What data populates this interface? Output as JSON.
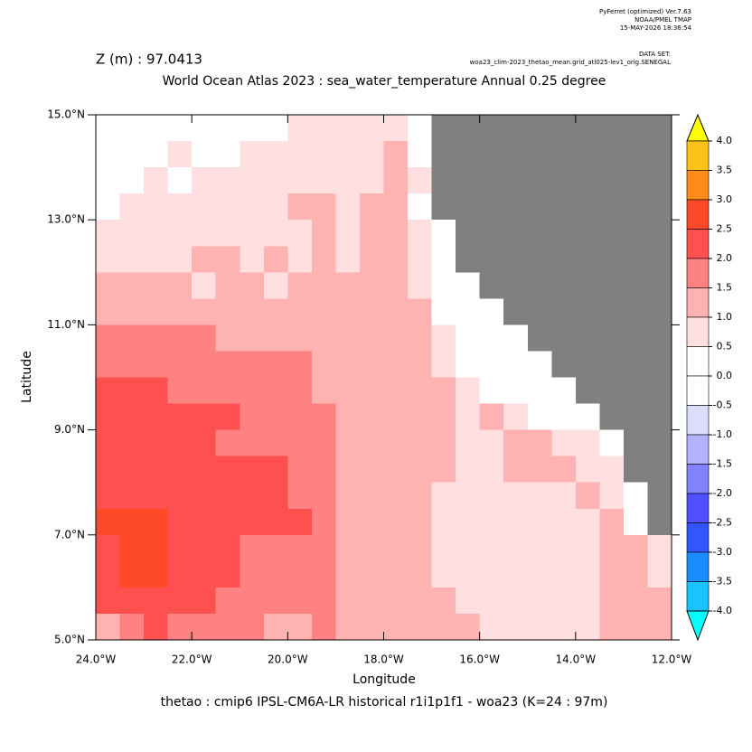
{
  "header": {
    "software": "PyFerret (optimized) Ver.7.63",
    "org": "NOAA/PMEL TMAP",
    "date": "15-MAY-2026 18:36:54",
    "dataset_label": "DATA SET:",
    "dataset": "woa23_clim-2023_thetao_mean.grid_atl025-lev1_orig.SENEGAL",
    "depth": "Z (m) : 97.0413"
  },
  "footer": "thetao : cmip6 IPSL-CM6A-LR historical r1i1p1f1 - woa23  (K=24 : 97m)",
  "chart_data": {
    "type": "heatmap",
    "title": "World Ocean Atlas 2023 : sea_water_temperature Annual  0.25 degree",
    "x_label": "Longitude",
    "y_label": "Latitude",
    "xlim": [
      -24,
      -12
    ],
    "ylim": [
      5,
      15
    ],
    "xticks": [
      {
        "value": -24,
        "label": "24.0°W"
      },
      {
        "value": -22,
        "label": "22.0°W"
      },
      {
        "value": -20,
        "label": "20.0°W"
      },
      {
        "value": -18,
        "label": "18.0°W"
      },
      {
        "value": -16,
        "label": "16.0°W"
      },
      {
        "value": -14,
        "label": "14.0°W"
      },
      {
        "value": -12,
        "label": "12.0°W"
      }
    ],
    "yticks": [
      {
        "value": 5,
        "label": "5.0°N"
      },
      {
        "value": 7,
        "label": "7.0°N"
      },
      {
        "value": 9,
        "label": "9.0°N"
      },
      {
        "value": 11,
        "label": "11.0°N"
      },
      {
        "value": 13,
        "label": "13.0°N"
      },
      {
        "value": 15,
        "label": "15.0°N"
      }
    ],
    "land_color": "#808080",
    "z": [
      [
        0.3,
        0.3,
        0.3,
        0.3,
        0.3,
        0.3,
        0.3,
        0.3,
        0.8,
        0.8,
        0.8,
        0.8,
        0.8,
        0.3,
        null,
        null,
        null,
        null,
        null,
        null,
        null,
        null,
        null,
        null
      ],
      [
        0.3,
        0.3,
        0.3,
        0.8,
        0.3,
        0.3,
        0.8,
        0.8,
        0.8,
        0.8,
        0.8,
        0.8,
        1.3,
        0.3,
        null,
        null,
        null,
        null,
        null,
        null,
        null,
        null,
        null,
        null
      ],
      [
        0.3,
        0.3,
        0.8,
        0.3,
        0.8,
        0.8,
        0.8,
        0.8,
        0.8,
        0.8,
        0.8,
        0.8,
        1.3,
        0.8,
        null,
        null,
        null,
        null,
        null,
        null,
        null,
        null,
        null,
        null
      ],
      [
        0.3,
        0.8,
        0.8,
        0.8,
        0.8,
        0.8,
        0.8,
        0.8,
        1.3,
        1.3,
        0.8,
        1.3,
        1.3,
        0.3,
        null,
        null,
        null,
        null,
        null,
        null,
        null,
        null,
        null,
        null
      ],
      [
        0.8,
        0.8,
        0.8,
        0.8,
        0.8,
        0.8,
        0.8,
        0.8,
        0.8,
        1.3,
        0.8,
        1.3,
        1.3,
        0.8,
        0.3,
        null,
        null,
        null,
        null,
        null,
        null,
        null,
        null,
        null
      ],
      [
        0.8,
        0.8,
        0.8,
        0.8,
        1.3,
        1.3,
        0.8,
        1.3,
        0.8,
        1.3,
        0.8,
        1.3,
        1.3,
        0.8,
        0.3,
        null,
        null,
        null,
        null,
        null,
        null,
        null,
        null,
        null
      ],
      [
        1.3,
        1.3,
        1.3,
        1.3,
        0.8,
        1.3,
        1.3,
        0.8,
        1.3,
        1.3,
        1.3,
        1.3,
        1.3,
        0.8,
        0.3,
        0.3,
        null,
        null,
        null,
        null,
        null,
        null,
        null,
        null
      ],
      [
        1.3,
        1.3,
        1.3,
        1.3,
        1.3,
        1.3,
        1.3,
        1.3,
        1.3,
        1.3,
        1.3,
        1.3,
        1.3,
        1.3,
        0.3,
        0.3,
        0.3,
        null,
        null,
        null,
        null,
        null,
        null,
        null
      ],
      [
        1.8,
        1.8,
        1.8,
        1.8,
        1.8,
        1.3,
        1.3,
        1.3,
        1.3,
        1.3,
        1.3,
        1.3,
        1.3,
        1.3,
        0.8,
        0.3,
        0.3,
        0.3,
        null,
        null,
        null,
        null,
        null,
        null
      ],
      [
        1.8,
        1.8,
        1.8,
        1.8,
        1.8,
        1.8,
        1.8,
        1.8,
        1.8,
        1.3,
        1.3,
        1.3,
        1.3,
        1.3,
        0.8,
        0.3,
        0.3,
        0.3,
        0.3,
        null,
        null,
        null,
        null,
        null
      ],
      [
        2.3,
        2.3,
        2.3,
        1.8,
        1.8,
        1.8,
        1.8,
        1.8,
        1.8,
        1.3,
        1.3,
        1.3,
        1.3,
        1.3,
        1.3,
        0.8,
        0.3,
        0.3,
        0.3,
        0.3,
        null,
        null,
        null,
        null
      ],
      [
        2.3,
        2.3,
        2.3,
        2.3,
        2.3,
        2.3,
        1.8,
        1.8,
        1.8,
        1.8,
        1.3,
        1.3,
        1.3,
        1.3,
        1.3,
        0.8,
        1.3,
        0.8,
        0.3,
        0.3,
        0.3,
        null,
        null,
        null
      ],
      [
        2.3,
        2.3,
        2.3,
        2.3,
        2.3,
        1.8,
        1.8,
        1.8,
        1.8,
        1.8,
        1.3,
        1.3,
        1.3,
        1.3,
        1.3,
        0.8,
        0.8,
        1.3,
        1.3,
        0.8,
        0.8,
        0.3,
        null,
        null
      ],
      [
        2.3,
        2.3,
        2.3,
        2.3,
        2.3,
        2.3,
        2.3,
        2.3,
        1.8,
        1.8,
        1.3,
        1.3,
        1.3,
        1.3,
        1.3,
        0.8,
        0.8,
        1.3,
        1.3,
        1.3,
        0.8,
        0.8,
        null,
        null
      ],
      [
        2.3,
        2.3,
        2.3,
        2.3,
        2.3,
        2.3,
        2.3,
        2.3,
        1.8,
        1.8,
        1.3,
        1.3,
        1.3,
        1.3,
        0.8,
        0.8,
        0.8,
        0.8,
        0.8,
        0.8,
        1.3,
        0.8,
        0.3,
        null
      ],
      [
        2.7,
        2.7,
        2.7,
        2.3,
        2.3,
        2.3,
        2.3,
        2.3,
        2.3,
        1.8,
        1.3,
        1.3,
        1.3,
        1.3,
        0.8,
        0.8,
        0.8,
        0.8,
        0.8,
        0.8,
        0.8,
        1.3,
        0.3,
        null
      ],
      [
        2.3,
        2.7,
        2.7,
        2.3,
        2.3,
        2.3,
        1.8,
        1.8,
        1.8,
        1.8,
        1.3,
        1.3,
        1.3,
        1.3,
        0.8,
        0.8,
        0.8,
        0.8,
        0.8,
        0.8,
        0.8,
        1.3,
        1.3,
        0.8
      ],
      [
        2.3,
        2.7,
        2.7,
        2.3,
        2.3,
        2.3,
        1.8,
        1.8,
        1.8,
        1.8,
        1.3,
        1.3,
        1.3,
        1.3,
        0.8,
        0.8,
        0.8,
        0.8,
        0.8,
        0.8,
        0.8,
        1.3,
        1.3,
        0.8
      ],
      [
        2.3,
        2.3,
        2.3,
        2.3,
        2.3,
        1.8,
        1.8,
        1.8,
        1.8,
        1.8,
        1.3,
        1.3,
        1.3,
        1.3,
        1.3,
        0.8,
        0.8,
        0.8,
        0.8,
        0.8,
        0.8,
        1.3,
        1.3,
        1.3
      ],
      [
        1.3,
        1.8,
        2.3,
        1.8,
        1.8,
        1.8,
        1.8,
        1.3,
        1.3,
        1.8,
        1.3,
        1.3,
        1.3,
        1.3,
        1.3,
        1.3,
        0.8,
        0.8,
        0.8,
        0.8,
        0.8,
        1.3,
        1.3,
        1.3
      ]
    ],
    "colorbar": {
      "ticks": [
        {
          "value": 4,
          "label": "4.0"
        },
        {
          "value": 3.5,
          "label": "3.5"
        },
        {
          "value": 3,
          "label": "3.0"
        },
        {
          "value": 2.5,
          "label": "2.5"
        },
        {
          "value": 2,
          "label": "2.0"
        },
        {
          "value": 1.5,
          "label": "1.5"
        },
        {
          "value": 1,
          "label": "1.0"
        },
        {
          "value": 0.5,
          "label": "0.5"
        },
        {
          "value": 0,
          "label": "0.0"
        },
        {
          "value": -0.5,
          "label": "-0.5"
        },
        {
          "value": -1,
          "label": "-1.0"
        },
        {
          "value": -1.5,
          "label": "-1.5"
        },
        {
          "value": -2,
          "label": "-2.0"
        },
        {
          "value": -2.5,
          "label": "-2.5"
        },
        {
          "value": -3,
          "label": "-3.0"
        },
        {
          "value": -3.5,
          "label": "-3.5"
        },
        {
          "value": -4,
          "label": "-4.0"
        }
      ],
      "colors": [
        "#ffff00",
        "#ffc21a",
        "#ff8c1a",
        "#ff4a2a",
        "#ff5050",
        "#ff8282",
        "#ffb2b2",
        "#ffdfdf",
        "#ffffff",
        "#ffffff",
        "#dcdcff",
        "#b2b2ff",
        "#8282ff",
        "#5050ff",
        "#3355ff",
        "#1a8cff",
        "#1ac2ff",
        "#00ffff"
      ]
    }
  }
}
